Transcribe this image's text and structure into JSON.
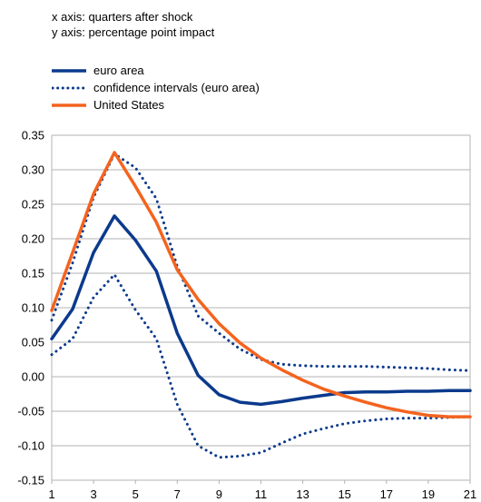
{
  "notes": {
    "x_axis": "x axis: quarters after shock",
    "y_axis": "y axis: percentage point impact"
  },
  "chart_data": {
    "type": "line",
    "title": "",
    "xlabel": "",
    "ylabel": "",
    "xlim": [
      1,
      21
    ],
    "ylim": [
      -0.15,
      0.35
    ],
    "x_ticks": [
      1,
      3,
      5,
      7,
      9,
      11,
      13,
      15,
      17,
      19,
      21
    ],
    "y_ticks": [
      -0.15,
      -0.1,
      -0.05,
      0.0,
      0.05,
      0.1,
      0.15,
      0.2,
      0.25,
      0.3,
      0.35
    ],
    "y_tick_labels": [
      "-0.15",
      "-0.10",
      "-0.05",
      "0.00",
      "0.05",
      "0.10",
      "0.15",
      "0.20",
      "0.25",
      "0.30",
      "0.35"
    ],
    "grid": "horizontal",
    "legend_position": "top-left",
    "x": [
      1,
      2,
      3,
      4,
      5,
      6,
      7,
      8,
      9,
      10,
      11,
      12,
      13,
      14,
      15,
      16,
      17,
      18,
      19,
      20,
      21
    ],
    "series": [
      {
        "name": "euro area",
        "style": "solid",
        "color": "#0b3a8c",
        "values": [
          0.055,
          0.098,
          0.18,
          0.233,
          0.198,
          0.153,
          0.063,
          0.002,
          -0.026,
          -0.037,
          -0.04,
          -0.036,
          -0.031,
          -0.027,
          -0.023,
          -0.022,
          -0.022,
          -0.021,
          -0.021,
          -0.02,
          -0.02
        ]
      },
      {
        "name": "confidence intervals (euro area)",
        "style": "dotted",
        "color": "#0b3a8c",
        "values": [
          0.082,
          0.165,
          0.26,
          0.323,
          0.303,
          0.258,
          0.16,
          0.088,
          0.063,
          0.04,
          0.025,
          0.018,
          0.016,
          0.015,
          0.015,
          0.015,
          0.014,
          0.013,
          0.012,
          0.01,
          0.009
        ]
      },
      {
        "name": "",
        "style": "dotted",
        "color": "#0b3a8c",
        "values": [
          0.032,
          0.055,
          0.115,
          0.148,
          0.097,
          0.055,
          -0.04,
          -0.1,
          -0.117,
          -0.115,
          -0.11,
          -0.096,
          -0.083,
          -0.075,
          -0.068,
          -0.064,
          -0.061,
          -0.06,
          -0.06,
          -0.059,
          -0.058
        ]
      },
      {
        "name": "United States",
        "style": "solid",
        "color": "#f4631e",
        "values": [
          0.096,
          0.18,
          0.265,
          0.325,
          0.276,
          0.224,
          0.155,
          0.112,
          0.077,
          0.049,
          0.027,
          0.01,
          -0.005,
          -0.018,
          -0.028,
          -0.037,
          -0.045,
          -0.051,
          -0.056,
          -0.058,
          -0.058
        ]
      }
    ]
  }
}
